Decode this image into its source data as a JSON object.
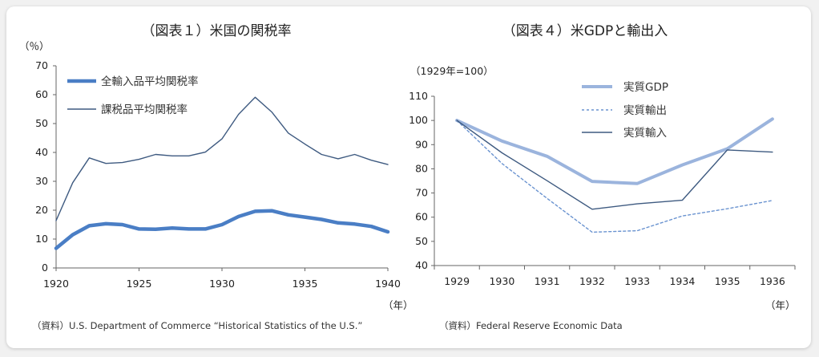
{
  "chart_data": [
    {
      "type": "line",
      "title": "（図表１）米国の関税率",
      "ylabel": "（％）",
      "xlabel": "（年）",
      "ylim": [
        0,
        70
      ],
      "yticks": [
        0,
        10,
        20,
        30,
        40,
        50,
        60,
        70
      ],
      "xlim": [
        1920,
        1940
      ],
      "xticks": [
        1920,
        1925,
        1930,
        1935,
        1940
      ],
      "series": [
        {
          "name": "全輸入品平均関税率",
          "color": "#4a7ec5",
          "x": [
            1920,
            1921,
            1922,
            1923,
            1924,
            1925,
            1926,
            1927,
            1928,
            1929,
            1930,
            1931,
            1932,
            1933,
            1934,
            1935,
            1936,
            1937,
            1938,
            1939,
            1940
          ],
          "values": [
            6.8,
            11.5,
            14.6,
            15.3,
            15.0,
            13.5,
            13.4,
            13.8,
            13.5,
            13.5,
            15.0,
            17.8,
            19.6,
            19.8,
            18.4,
            17.6,
            16.8,
            15.6,
            15.2,
            14.4,
            12.5
          ]
        },
        {
          "name": "課税品平均関税率",
          "color": "#3e5a80",
          "x": [
            1920,
            1921,
            1922,
            1923,
            1924,
            1925,
            1926,
            1927,
            1928,
            1929,
            1930,
            1931,
            1932,
            1933,
            1934,
            1935,
            1936,
            1937,
            1938,
            1939,
            1940
          ],
          "values": [
            16.4,
            29.5,
            38.1,
            36.2,
            36.5,
            37.6,
            39.3,
            38.8,
            38.8,
            40.1,
            44.7,
            53.2,
            59.1,
            54.0,
            46.7,
            42.9,
            39.3,
            37.8,
            39.3,
            37.3,
            35.8
          ]
        }
      ],
      "source": "（資料）U.S. Department of Commerce “Historical Statistics of the U.S.”"
    },
    {
      "type": "line",
      "title": "（図表４）米GDPと輸出入",
      "ylabel": "（1929年=100）",
      "xlabel": "（年）",
      "ylim": [
        40,
        110
      ],
      "yticks": [
        40,
        50,
        60,
        70,
        80,
        90,
        100,
        110
      ],
      "categories": [
        "1929",
        "1930",
        "1931",
        "1932",
        "1933",
        "1934",
        "1935",
        "1936"
      ],
      "series": [
        {
          "name": "実質GDP",
          "color": "#9bb4dd",
          "style": "thick",
          "values": [
            100,
            91.5,
            85.2,
            74.8,
            73.9,
            81.6,
            88.3,
            100.6
          ]
        },
        {
          "name": "実質輸出",
          "color": "#6a93d0",
          "style": "dashed",
          "values": [
            100,
            82.2,
            67.8,
            53.8,
            54.4,
            60.5,
            63.5,
            66.9
          ]
        },
        {
          "name": "実質輸入",
          "color": "#3e5a80",
          "style": "thin",
          "values": [
            100,
            86.6,
            75.1,
            63.3,
            65.5,
            67.0,
            87.8,
            86.9
          ]
        }
      ],
      "source": "（資料）Federal Reserve Economic Data"
    }
  ]
}
